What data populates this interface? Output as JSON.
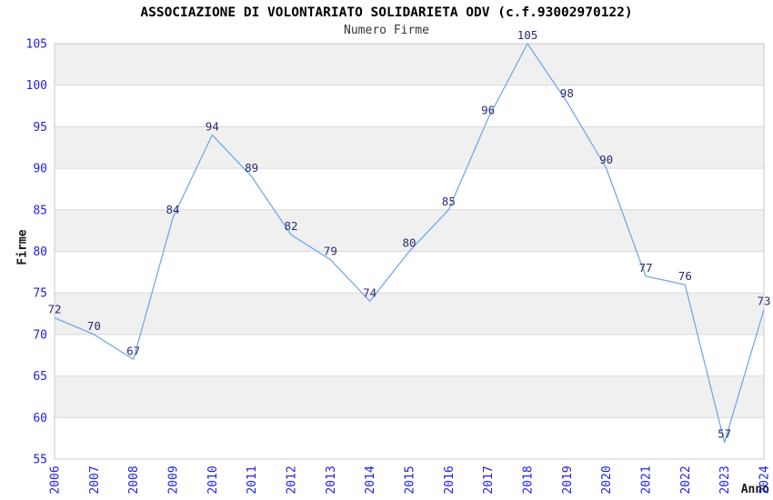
{
  "header": {
    "title": "ASSOCIAZIONE DI VOLONTARIATO SOLIDARIETA ODV (c.f.93002970122)",
    "subtitle": "Numero Firme"
  },
  "chart_data": {
    "type": "line",
    "title": "ASSOCIAZIONE DI VOLONTARIATO SOLIDARIETA ODV (c.f.93002970122)",
    "subtitle": "Numero Firme",
    "xlabel": "Anno",
    "ylabel": "Firme",
    "categories": [
      "2006",
      "2007",
      "2008",
      "2009",
      "2010",
      "2011",
      "2012",
      "2013",
      "2014",
      "2015",
      "2016",
      "2017",
      "2018",
      "2019",
      "2020",
      "2021",
      "2022",
      "2023",
      "2024"
    ],
    "values": [
      72,
      70,
      67,
      84,
      94,
      89,
      82,
      79,
      74,
      80,
      85,
      96,
      105,
      98,
      90,
      77,
      76,
      57,
      73
    ],
    "ylim": [
      55,
      105
    ],
    "ytick_step": 5,
    "yticks": [
      55,
      60,
      65,
      70,
      75,
      80,
      85,
      90,
      95,
      100,
      105
    ],
    "grid": true,
    "banded_background": true,
    "legend": "none",
    "point_labels_visible": true,
    "colors": {
      "line": "#74a9e8",
      "tick_labels": "#1f1fe0",
      "point_labels": "#2b2b72",
      "band_gray": "#f0f0f0",
      "band_white": "#ffffff",
      "gridline": "#d9d9d9",
      "spine": "#c9c9c9",
      "title": "#000000",
      "subtitle": "#31363b",
      "axis_titles": "#17171c"
    }
  }
}
